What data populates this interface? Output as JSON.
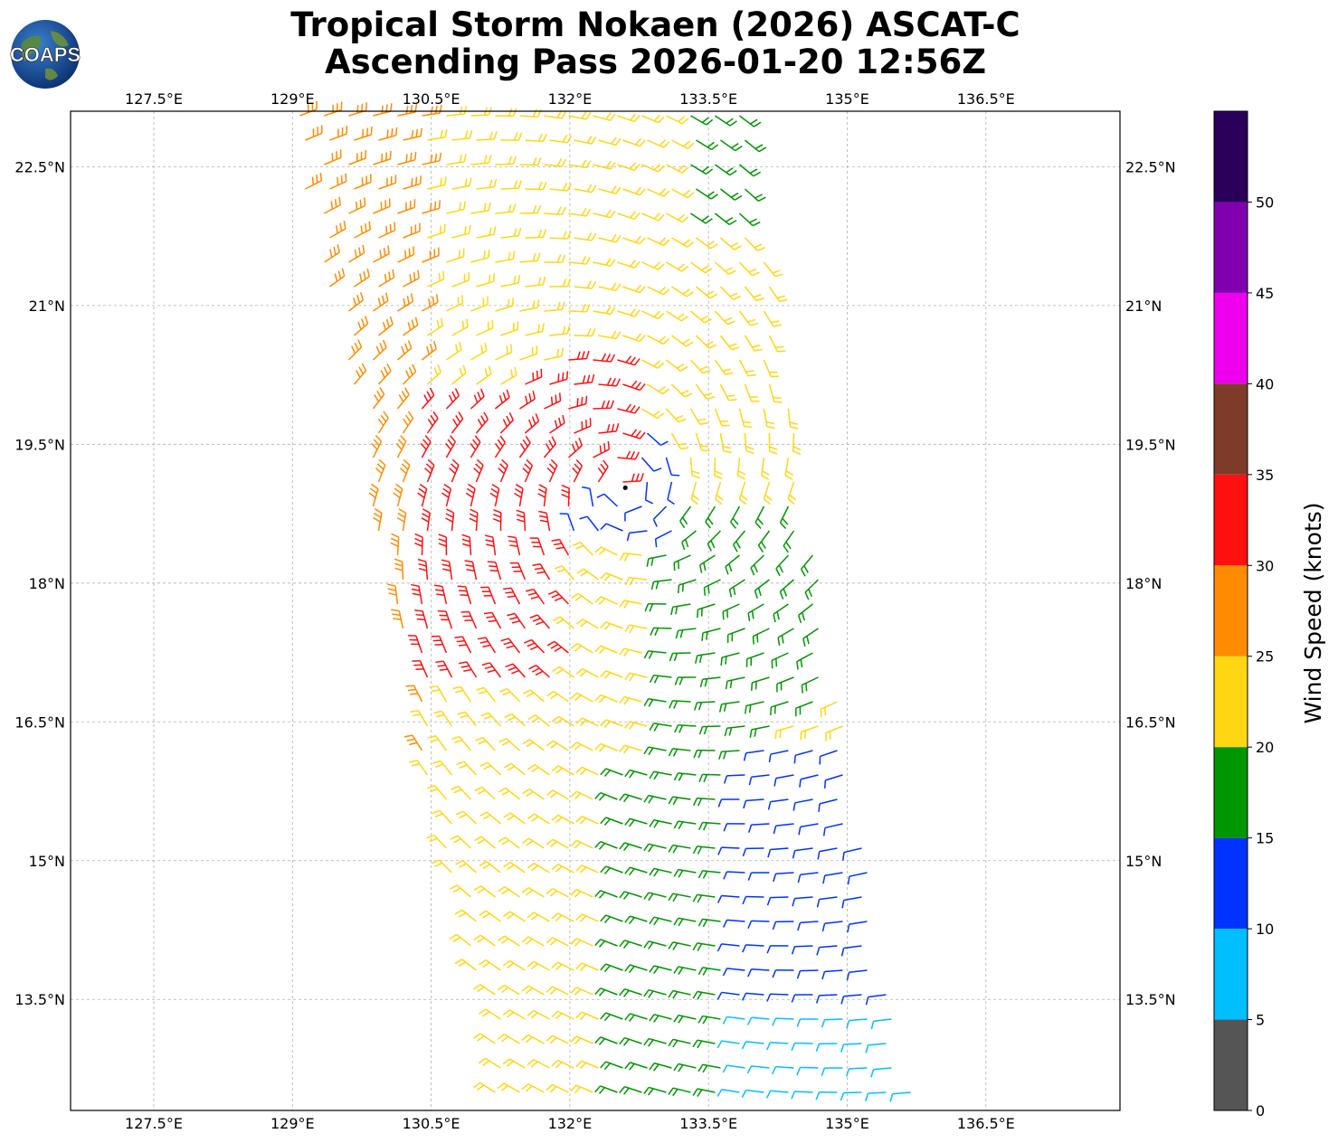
{
  "title": {
    "line1": "Tropical Storm Nokaen (2026) ASCAT-C",
    "line2": "Ascending Pass 2026-01-20 12:56Z"
  },
  "logo": {
    "text": "COAPS",
    "icon": "globe-icon"
  },
  "map": {
    "lon_range": [
      126.6,
      137.95
    ],
    "lat_range": [
      12.3,
      23.1
    ],
    "lon_ticks": [
      "127.5°E",
      "129°E",
      "130.5°E",
      "132°E",
      "133.5°E",
      "135°E",
      "136.5°E"
    ],
    "lon_values": [
      127.5,
      129.0,
      130.5,
      132.0,
      133.5,
      135.0,
      136.5
    ],
    "lat_ticks": [
      "22.5°N",
      "21°N",
      "19.5°N",
      "18°N",
      "16.5°N",
      "15°N",
      "13.5°N"
    ],
    "lat_values": [
      22.5,
      21.0,
      19.5,
      18.0,
      16.5,
      15.0,
      13.5
    ],
    "gridlines": true,
    "storm_center": {
      "lon": 132.6,
      "lat": 19.03
    }
  },
  "colorbar": {
    "label": "Wind Speed (knots)",
    "tick_labels": [
      "0",
      "5",
      "10",
      "15",
      "20",
      "25",
      "30",
      "35",
      "40",
      "45",
      "50"
    ],
    "bins": [
      0,
      5,
      10,
      15,
      20,
      25,
      30,
      35,
      40,
      45,
      50,
      55
    ],
    "colors": [
      "#555555",
      "#00bfff",
      "#0033ff",
      "#009600",
      "#ffd612",
      "#ff8c00",
      "#ff1010",
      "#7f3b2a",
      "#ee00ee",
      "#8000b0",
      "#2a005a"
    ]
  }
}
